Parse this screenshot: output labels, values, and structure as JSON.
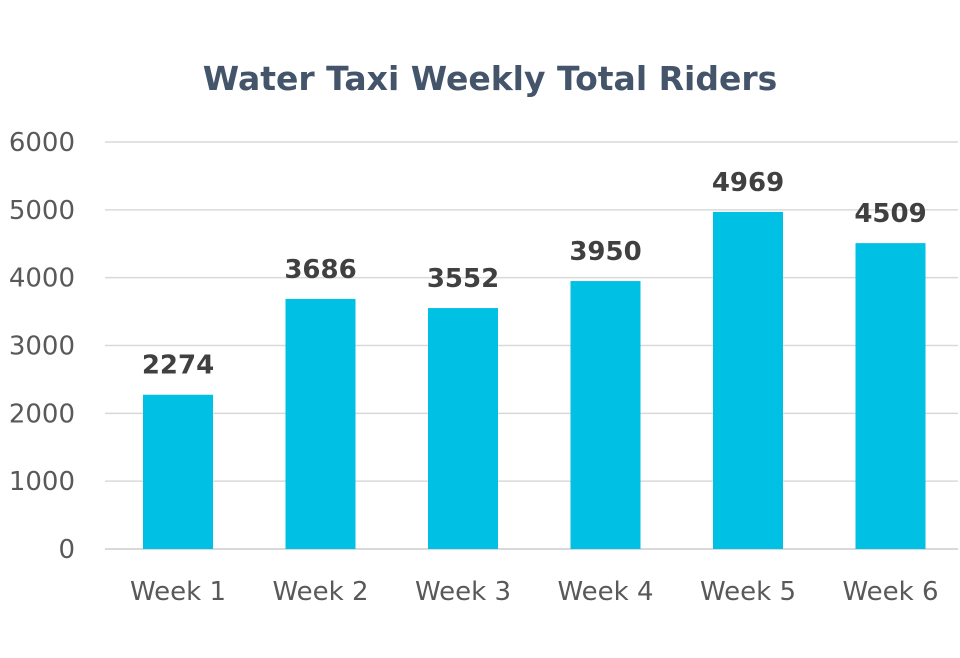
{
  "chart_data": {
    "type": "bar",
    "title": "Water Taxi Weekly Total Riders",
    "xlabel": "",
    "ylabel": "",
    "categories": [
      "Week 1",
      "Week 2",
      "Week 3",
      "Week 4",
      "Week 5",
      "Week 6"
    ],
    "values": [
      2274,
      3686,
      3552,
      3950,
      4969,
      4509
    ],
    "data_labels": [
      "2274",
      "3686",
      "3552",
      "3950",
      "4969",
      "4509"
    ],
    "ylim": [
      0,
      6000
    ],
    "yticks": [
      "0",
      "1000",
      "2000",
      "3000",
      "4000",
      "5000",
      "6000"
    ],
    "grid": true,
    "legend": "none",
    "colors": {
      "bar": "#00c0e4",
      "grid": "#d9d9d9",
      "title": "#44546a"
    }
  }
}
